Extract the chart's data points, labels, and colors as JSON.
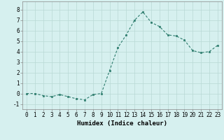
{
  "xlabel": "Humidex (Indice chaleur)",
  "ylabel": "",
  "x": [
    0,
    1,
    2,
    3,
    4,
    5,
    6,
    7,
    8,
    9,
    10,
    11,
    12,
    13,
    14,
    15,
    16,
    17,
    18,
    19,
    20,
    21,
    22,
    23
  ],
  "y": [
    0.0,
    0.0,
    -0.2,
    -0.3,
    -0.1,
    -0.3,
    -0.5,
    -0.6,
    -0.1,
    0.0,
    2.2,
    4.4,
    5.6,
    7.0,
    7.8,
    6.8,
    6.4,
    5.6,
    5.5,
    5.1,
    4.1,
    3.9,
    4.0,
    4.6
  ],
  "line_color": "#2e7d6e",
  "marker": "s",
  "marker_size": 2.0,
  "bg_color": "#d6f0ef",
  "grid_color": "#b8d8d5",
  "ylim": [
    -1.5,
    8.8
  ],
  "xlim": [
    -0.5,
    23.5
  ],
  "yticks": [
    -1,
    0,
    1,
    2,
    3,
    4,
    5,
    6,
    7,
    8
  ],
  "xticks": [
    0,
    1,
    2,
    3,
    4,
    5,
    6,
    7,
    8,
    9,
    10,
    11,
    12,
    13,
    14,
    15,
    16,
    17,
    18,
    19,
    20,
    21,
    22,
    23
  ],
  "xlabel_fontsize": 6.5,
  "tick_fontsize": 5.5,
  "line_width": 0.8
}
